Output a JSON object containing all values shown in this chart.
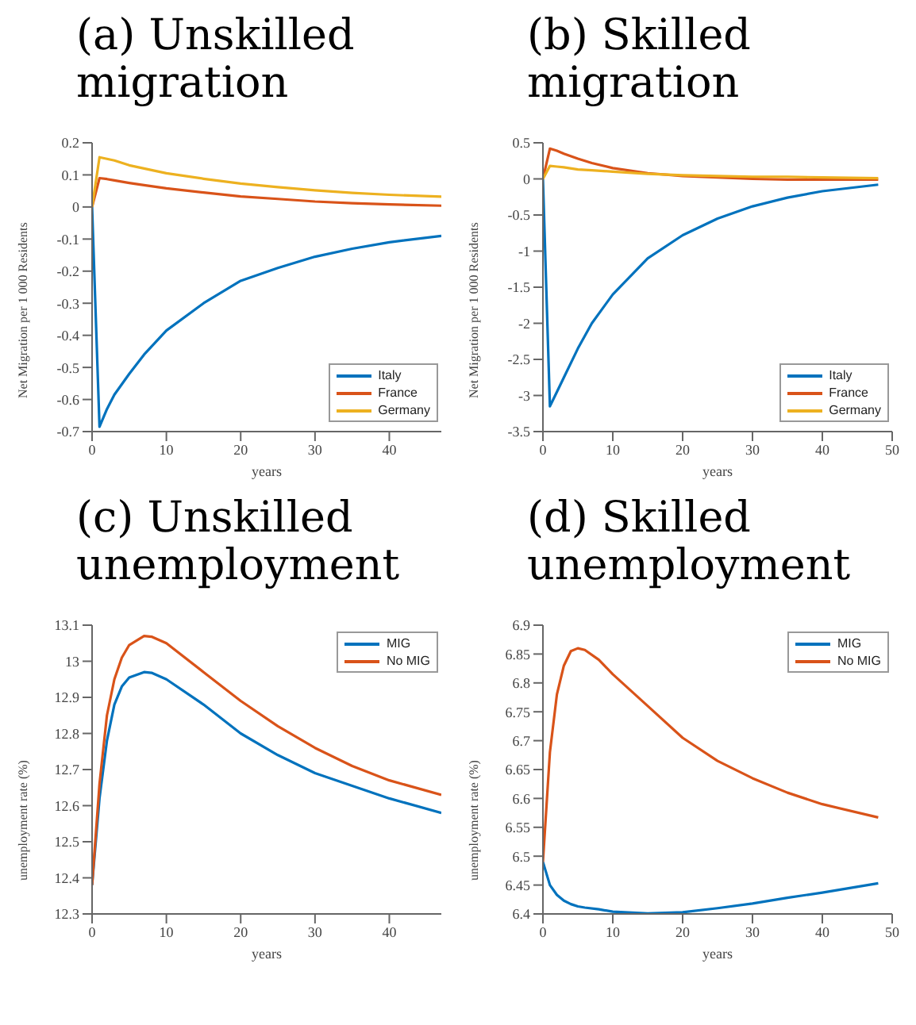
{
  "chart_data": [
    {
      "type": "line",
      "title": "(a) Unskilled migration",
      "xlabel": "years",
      "ylabel": "Net Migration per 1 000 Residents",
      "xlim": [
        0,
        47
      ],
      "xticks": [
        0,
        10,
        20,
        30,
        40
      ],
      "ylim": [
        -0.7,
        0.2
      ],
      "yticks": [
        -0.7,
        -0.6,
        -0.5,
        -0.4,
        -0.3,
        -0.2,
        -0.1,
        0,
        0.1,
        0.2
      ],
      "legend": "bottom right",
      "grid": false,
      "marker": "none",
      "line_style": "solid",
      "x": [
        0,
        1,
        2,
        3,
        5,
        7,
        10,
        15,
        20,
        25,
        30,
        35,
        40,
        47
      ],
      "series": [
        {
          "name": "Italy",
          "color": "#0072bd",
          "values": [
            0,
            -0.685,
            -0.63,
            -0.585,
            -0.52,
            -0.46,
            -0.385,
            -0.3,
            -0.23,
            -0.19,
            -0.155,
            -0.13,
            -0.11,
            -0.09
          ]
        },
        {
          "name": "France",
          "color": "#d95319",
          "values": [
            0,
            0.09,
            0.087,
            0.083,
            0.075,
            0.068,
            0.058,
            0.045,
            0.033,
            0.025,
            0.017,
            0.012,
            0.008,
            0.004
          ]
        },
        {
          "name": "Germany",
          "color": "#edb120",
          "values": [
            0,
            0.155,
            0.15,
            0.145,
            0.13,
            0.12,
            0.105,
            0.088,
            0.073,
            0.062,
            0.052,
            0.044,
            0.038,
            0.032
          ]
        }
      ]
    },
    {
      "type": "line",
      "title": "(b) Skilled migration",
      "xlabel": "years",
      "ylabel": "Net Migration per 1 000 Residents",
      "xlim": [
        0,
        50
      ],
      "xticks": [
        0,
        10,
        20,
        30,
        40,
        50
      ],
      "ylim": [
        -3.5,
        0.5
      ],
      "yticks": [
        -3.5,
        -3,
        -2.5,
        -2,
        -1.5,
        -1,
        -0.5,
        0,
        0.5
      ],
      "legend": "bottom right",
      "grid": false,
      "marker": "none",
      "line_style": "solid",
      "x": [
        0,
        1,
        2,
        3,
        5,
        7,
        10,
        15,
        20,
        25,
        30,
        35,
        40,
        48
      ],
      "series": [
        {
          "name": "Italy",
          "color": "#0072bd",
          "values": [
            0,
            -3.15,
            -2.95,
            -2.75,
            -2.35,
            -2.0,
            -1.6,
            -1.1,
            -0.78,
            -0.55,
            -0.38,
            -0.26,
            -0.17,
            -0.08
          ]
        },
        {
          "name": "France",
          "color": "#d95319",
          "values": [
            0,
            0.42,
            0.39,
            0.35,
            0.28,
            0.22,
            0.15,
            0.08,
            0.04,
            0.02,
            0,
            -0.01,
            -0.01,
            -0.01
          ]
        },
        {
          "name": "Germany",
          "color": "#edb120",
          "values": [
            0,
            0.18,
            0.17,
            0.16,
            0.13,
            0.12,
            0.1,
            0.07,
            0.05,
            0.04,
            0.03,
            0.03,
            0.02,
            0.01
          ]
        }
      ]
    },
    {
      "type": "line",
      "title": "(c) Unskilled unemployment",
      "xlabel": "years",
      "ylabel": "unemployment rate (%)",
      "xlim": [
        0,
        47
      ],
      "xticks": [
        0,
        10,
        20,
        30,
        40
      ],
      "ylim": [
        12.3,
        13.1
      ],
      "yticks": [
        12.3,
        12.4,
        12.5,
        12.6,
        12.7,
        12.8,
        12.9,
        13,
        13.1
      ],
      "legend": "top right",
      "grid": false,
      "marker": "none",
      "line_style": "solid",
      "x": [
        0,
        1,
        2,
        3,
        4,
        5,
        7,
        8,
        10,
        15,
        20,
        25,
        30,
        35,
        40,
        47
      ],
      "series": [
        {
          "name": "MIG",
          "color": "#0072bd",
          "values": [
            12.38,
            12.62,
            12.78,
            12.88,
            12.93,
            12.955,
            12.97,
            12.968,
            12.95,
            12.88,
            12.8,
            12.74,
            12.69,
            12.655,
            12.62,
            12.58
          ]
        },
        {
          "name": "No MIG",
          "color": "#d95319",
          "values": [
            12.38,
            12.66,
            12.85,
            12.95,
            13.01,
            13.045,
            13.07,
            13.068,
            13.05,
            12.97,
            12.89,
            12.82,
            12.76,
            12.71,
            12.67,
            12.63
          ]
        }
      ]
    },
    {
      "type": "line",
      "title": "(d) Skilled unemployment",
      "xlabel": "years",
      "ylabel": "unemployment rate (%)",
      "xlim": [
        0,
        50
      ],
      "xticks": [
        0,
        10,
        20,
        30,
        40,
        50
      ],
      "ylim": [
        6.4,
        6.9
      ],
      "yticks": [
        6.4,
        6.45,
        6.5,
        6.55,
        6.6,
        6.65,
        6.7,
        6.75,
        6.8,
        6.85,
        6.9
      ],
      "legend": "top right",
      "grid": false,
      "marker": "none",
      "line_style": "solid",
      "x": [
        0,
        1,
        2,
        3,
        4,
        5,
        6,
        8,
        10,
        15,
        20,
        25,
        30,
        35,
        40,
        48
      ],
      "series": [
        {
          "name": "MIG",
          "color": "#0072bd",
          "values": [
            6.49,
            6.45,
            6.433,
            6.423,
            6.417,
            6.413,
            6.411,
            6.408,
            6.404,
            6.401,
            6.403,
            6.41,
            6.418,
            6.428,
            6.437,
            6.453
          ]
        },
        {
          "name": "No MIG",
          "color": "#d95319",
          "values": [
            6.49,
            6.68,
            6.78,
            6.83,
            6.855,
            6.86,
            6.857,
            6.84,
            6.815,
            6.76,
            6.705,
            6.665,
            6.635,
            6.61,
            6.59,
            6.567
          ]
        }
      ]
    }
  ]
}
